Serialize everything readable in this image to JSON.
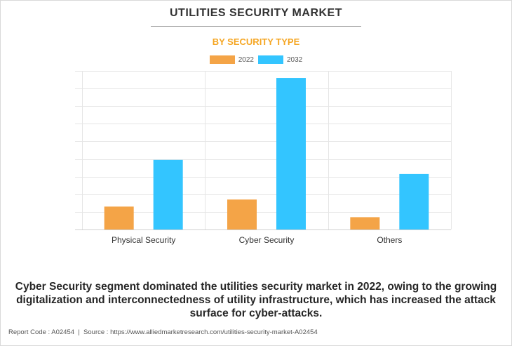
{
  "header": {
    "title": "UTILITIES SECURITY MARKET",
    "subtitle": "BY SECURITY TYPE"
  },
  "chart_data": {
    "type": "bar",
    "title": "UTILITIES SECURITY MARKET",
    "subtitle": "BY SECURITY TYPE",
    "categories": [
      "Physical Security",
      "Cyber Security",
      "Others"
    ],
    "series": [
      {
        "name": "2022",
        "color": "#f4a447",
        "values": [
          1.3,
          1.7,
          0.7
        ]
      },
      {
        "name": "2032",
        "color": "#33c5ff",
        "values": [
          3.95,
          8.6,
          3.15
        ]
      }
    ],
    "ylim": [
      0,
      9
    ],
    "ytick_step": 1,
    "grid": true,
    "show_y_labels": false,
    "legend": "top-center",
    "xlabel": "",
    "ylabel": ""
  },
  "caption": "Cyber Security segment dominated the utilities security market in 2022, owing to the growing digitalization and interconnectedness of utility infrastructure, which has increased the attack surface for cyber-attacks.",
  "footer": {
    "report_code": "Report Code : A02454",
    "separator": "|",
    "source": "Source : https://www.alliedmarketresearch.com/utilities-security-market-A02454"
  }
}
